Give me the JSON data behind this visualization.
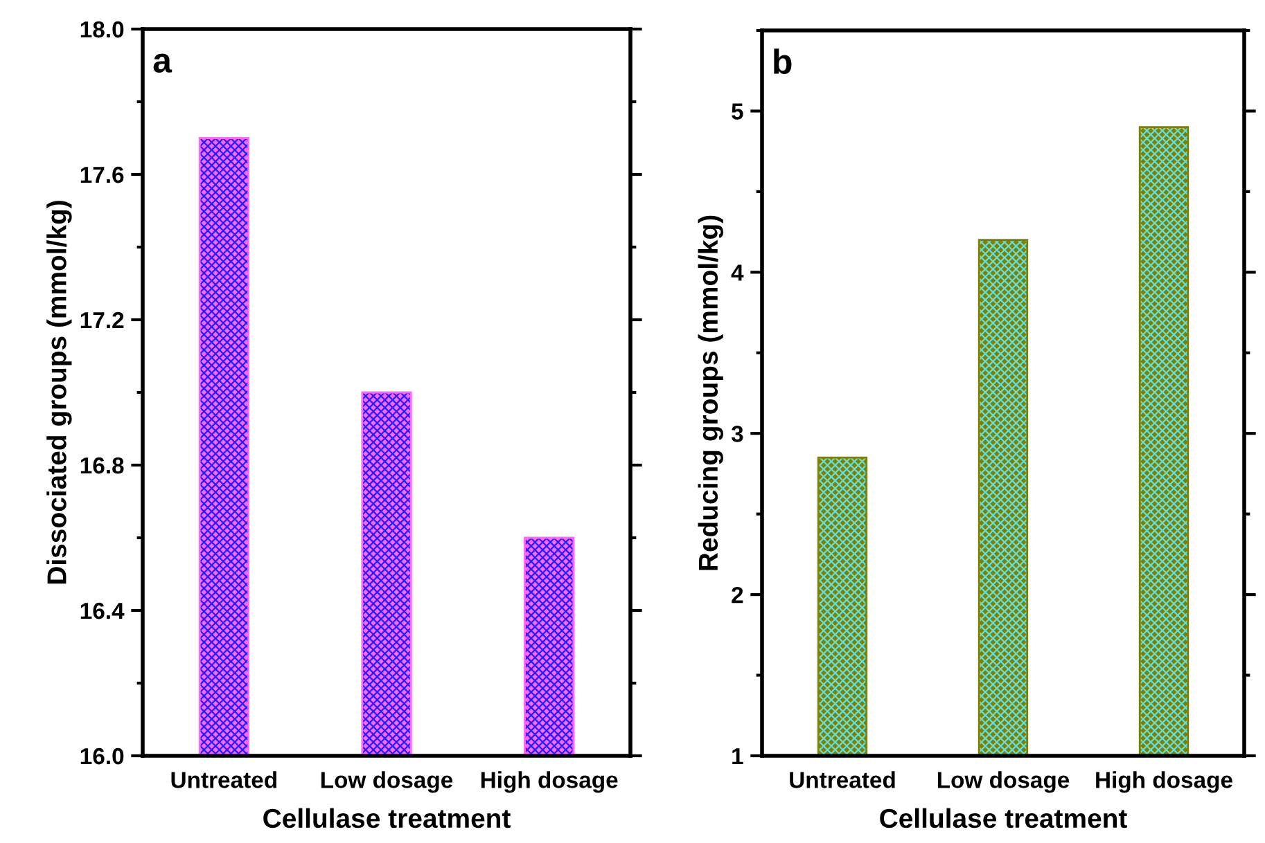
{
  "chart_data": [
    {
      "type": "bar",
      "annotations": [
        "a"
      ],
      "xlabel": "Cellulase treatment",
      "ylabel": "Dissociated groups (mmol/kg)",
      "categories": [
        "Untreated",
        "Low dosage",
        "High dosage"
      ],
      "series": [
        {
          "color": "#ff66ff",
          "values": [
            17.7,
            17.0,
            16.6
          ]
        }
      ],
      "ylim": [
        16.0,
        18.0
      ],
      "yticks": [
        {
          "value": 16.0,
          "label": "16.0"
        },
        16.4,
        16.8,
        17.2,
        17.6,
        {
          "value": 18.0,
          "label": "18.0"
        }
      ]
    },
    {
      "type": "bar",
      "annotations": [
        "b"
      ],
      "xlabel": "Cellulase treatment",
      "ylabel": "Reducing groups (mmol/kg)",
      "categories": [
        "Untreated",
        "Low dosage",
        "High dosage"
      ],
      "series": [
        {
          "color": "#808000",
          "values": [
            2.85,
            4.2,
            4.9
          ]
        }
      ],
      "ylim": [
        1,
        5.5
      ],
      "yticks": [
        1,
        2,
        3,
        4,
        5
      ]
    }
  ]
}
